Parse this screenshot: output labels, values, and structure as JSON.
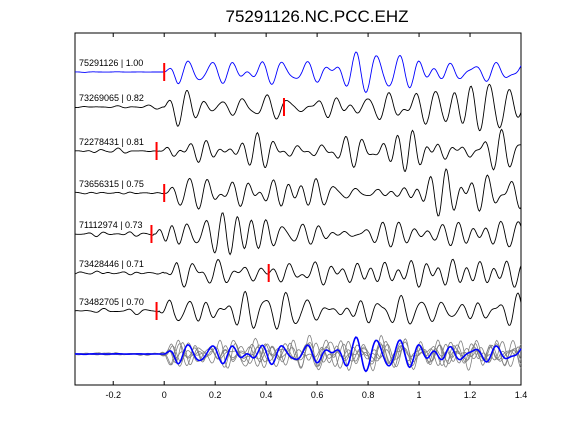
{
  "chart_data": {
    "type": "line",
    "title": "75291126.NC.PCC.EHZ",
    "xlabel": "",
    "ylabel": "",
    "xlim": [
      -0.35,
      1.4
    ],
    "x_ticks": [
      "-0.2",
      "0",
      "0.2",
      "0.4",
      "0.6",
      "0.8",
      "1",
      "1.2",
      "1.4"
    ],
    "grid": false,
    "colors": {
      "reference": "#0000ff",
      "trace": "#000000",
      "pick": "#ff0000",
      "stack": "#808080"
    },
    "series": [
      {
        "name": "75291126 | 1.00",
        "pick_time": 0.0,
        "color": "#0000ff"
      },
      {
        "name": "73269065 | 0.82",
        "pick_time": 0.47,
        "color": "#000000"
      },
      {
        "name": "72278431 | 0.81",
        "pick_time": -0.03,
        "color": "#000000"
      },
      {
        "name": "73656315 | 0.75",
        "pick_time": 0.0,
        "color": "#000000"
      },
      {
        "name": "71112974 | 0.73",
        "pick_time": -0.05,
        "color": "#000000"
      },
      {
        "name": "73428446 | 0.71",
        "pick_time": 0.41,
        "color": "#000000"
      },
      {
        "name": "73482705 | 0.70",
        "pick_time": -0.03,
        "color": "#000000"
      }
    ]
  }
}
